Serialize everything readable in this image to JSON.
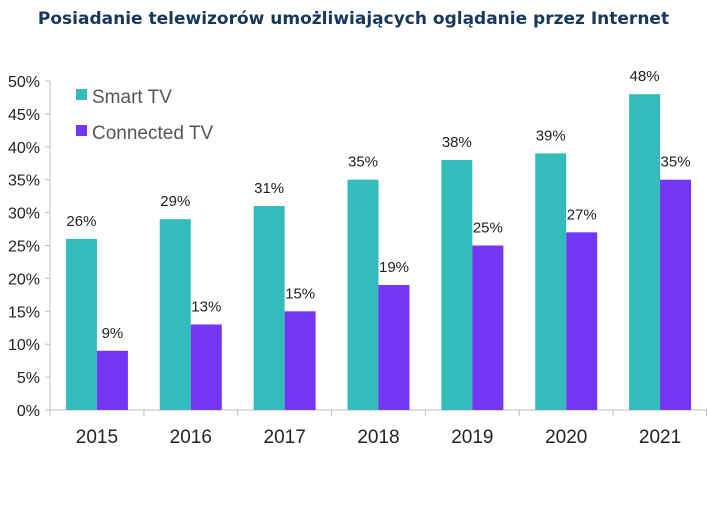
{
  "chart_data": {
    "type": "bar",
    "title": "Posiadanie telewizorów umożliwiających oglądanie przez Internet",
    "xlabel": "",
    "ylabel": "",
    "categories": [
      "2015",
      "2016",
      "2017",
      "2018",
      "2019",
      "2020",
      "2021"
    ],
    "series": [
      {
        "name": "Smart TV",
        "color": "#33bcbb",
        "values": [
          26,
          29,
          31,
          35,
          38,
          39,
          48
        ]
      },
      {
        "name": "Connected TV",
        "color": "#7337f4",
        "values": [
          9,
          13,
          15,
          19,
          25,
          27,
          35
        ]
      }
    ],
    "ylim": [
      0,
      50
    ],
    "ytick_labels": [
      "0%",
      "5%",
      "10%",
      "15%",
      "20%",
      "25%",
      "30%",
      "35%",
      "40%",
      "45%",
      "50%"
    ],
    "value_suffix": "%",
    "legend_position": "top-left",
    "grid": false
  }
}
